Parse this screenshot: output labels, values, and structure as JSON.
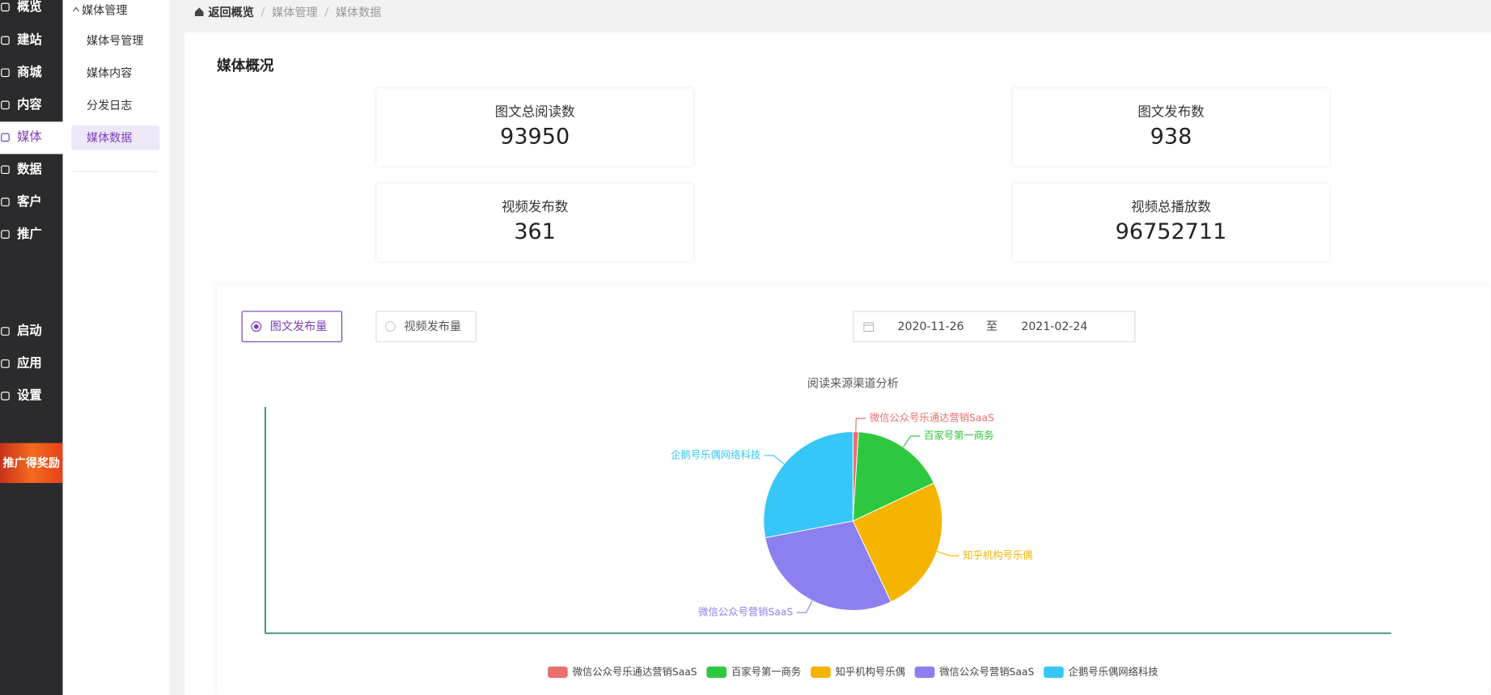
{
  "sidebar": [
    "概览",
    "建站",
    "商城",
    "内容",
    "媒体",
    "数据",
    "客户",
    "推广",
    "启动",
    "应用",
    "设置"
  ],
  "promo": "推广得奖励",
  "submenu": {
    "group": "媒体管理",
    "items": [
      "媒体号管理",
      "媒体内容",
      "分发日志",
      "媒体数据"
    ]
  },
  "breadcrumb": {
    "home": "返回概览",
    "items": [
      "媒体管理",
      "媒体数据"
    ]
  },
  "page_title": "媒体概况",
  "stats": [
    {
      "label": "图文总阅读数",
      "value": 93950
    },
    {
      "label": "图文发布数",
      "value": 938
    },
    {
      "label": "视频发布数",
      "value": 361
    },
    {
      "label": "视频总播放数",
      "value": 96752711
    }
  ],
  "tabs": [
    "图文发布量",
    "视频发布量"
  ],
  "date_range": {
    "start": "2020-11-26",
    "separator": "至",
    "end": "2021-02-24"
  },
  "chart_data": {
    "type": "pie",
    "title": "阅读来源渠道分析",
    "categories": [
      "微信公众号乐通达营销SaaS",
      "百家号第一商务",
      "知乎机构号乐偶",
      "微信公众号营销SaaS",
      "企鹅号乐偶网络科技"
    ],
    "values": [
      1,
      17,
      25,
      29,
      28
    ],
    "colors": [
      "#e8706f",
      "#2ec840",
      "#f5b400",
      "#8c7ff0",
      "#36c6f8"
    ],
    "legend": "bottom"
  }
}
